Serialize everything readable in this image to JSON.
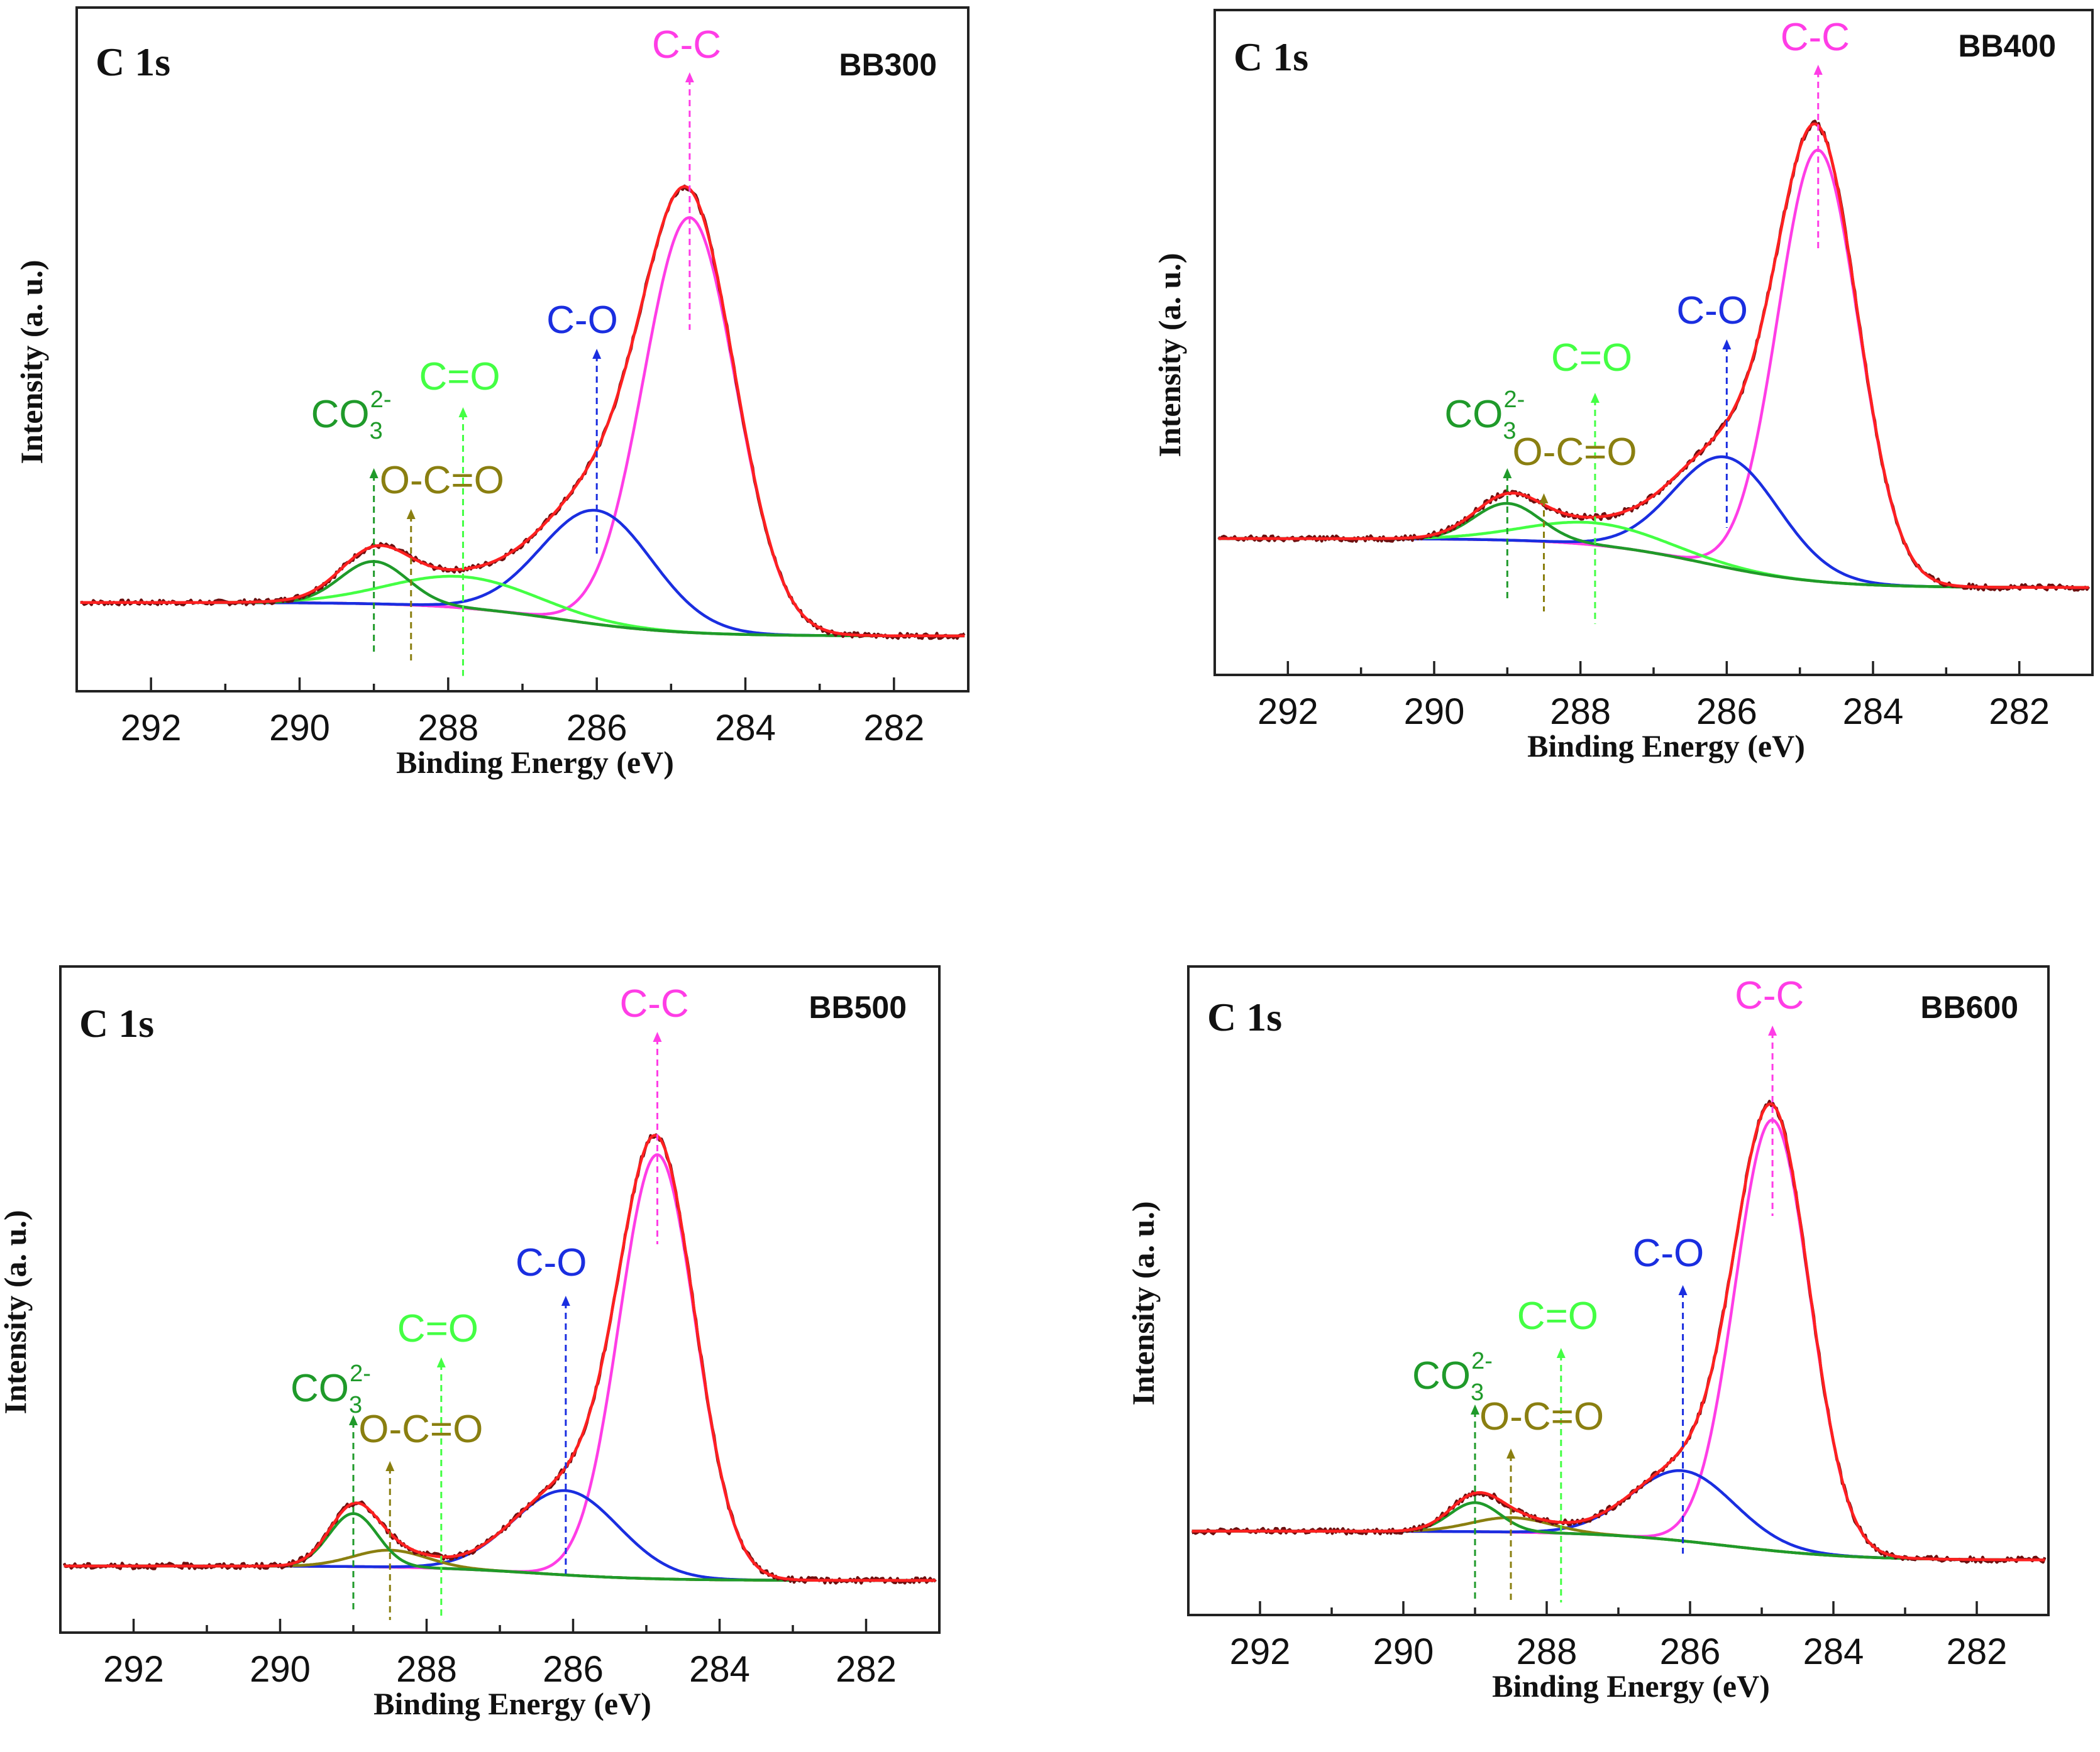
{
  "colors": {
    "raw": "#6b1010",
    "envelope": "#ff2020",
    "CC": "#ff3de6",
    "CO": "#1a2ee0",
    "C=O": "#44ff44",
    "OCO": "#8a7f10",
    "CO3": "#1f9a2a",
    "background": "#e0a018"
  },
  "chart_data": [
    {
      "type": "line",
      "panel": "BB300",
      "corner_label": "C 1s",
      "sample_label": "BB300",
      "xlabel": "Binding Energy (eV)",
      "ylabel": "Intensity (a. u.)",
      "xlim": [
        293,
        281
      ],
      "ylim": [
        0,
        1.12
      ],
      "xticks": [
        292,
        290,
        288,
        286,
        284,
        282
      ],
      "background": {
        "high_be": 0.03,
        "low_be": -0.045,
        "center": 286.5,
        "width": 0.8
      },
      "series": [
        {
          "name": "C-C",
          "key": "CC",
          "center": 284.75,
          "height": 0.93,
          "sigma": 0.62
        },
        {
          "name": "C-O",
          "key": "CO",
          "center": 286.0,
          "height": 0.255,
          "sigma": 0.75
        },
        {
          "name": "C=O",
          "key": "C=O",
          "center": 287.8,
          "height": 0.07,
          "sigma": 1.0
        },
        {
          "name": "CO3 2-",
          "key": "CO3",
          "center": 289.0,
          "height": 0.095,
          "sigma": 0.45
        }
      ],
      "annotations": [
        {
          "label": "C-C",
          "key": "CC",
          "x": 284.75
        },
        {
          "label": "C-O",
          "key": "CO",
          "x": 286.0
        },
        {
          "label": "C=O",
          "key": "C=O",
          "x": 287.8
        },
        {
          "label": "O-C=O",
          "key": "OCO",
          "x": 288.5
        },
        {
          "label": "CO",
          "sub": "3",
          "sup": "2-",
          "key": "CO3",
          "x": 289.0
        }
      ]
    },
    {
      "type": "line",
      "panel": "BB400",
      "corner_label": "C 1s",
      "sample_label": "BB400",
      "xlabel": "Binding Energy (eV)",
      "ylabel": "Intensity (a. u.)",
      "xlim": [
        293,
        281
      ],
      "ylim": [
        0,
        1.1
      ],
      "xticks": [
        292,
        290,
        288,
        286,
        284,
        282
      ],
      "background": {
        "high_be": 0.1,
        "low_be": 0.0,
        "center": 286.3,
        "width": 0.8
      },
      "series": [
        {
          "name": "C-C",
          "key": "CC",
          "center": 284.75,
          "height": 0.88,
          "sigma": 0.55
        },
        {
          "name": "C-O",
          "key": "CO",
          "center": 286.0,
          "height": 0.225,
          "sigma": 0.72
        },
        {
          "name": "C=O",
          "key": "C=O",
          "center": 287.8,
          "height": 0.045,
          "sigma": 0.95
        },
        {
          "name": "CO3 2-",
          "key": "CO3",
          "center": 289.0,
          "height": 0.075,
          "sigma": 0.45
        }
      ],
      "annotations": [
        {
          "label": "C-C",
          "key": "CC",
          "x": 284.75
        },
        {
          "label": "C-O",
          "key": "CO",
          "x": 286.0
        },
        {
          "label": "C=O",
          "key": "C=O",
          "x": 287.8
        },
        {
          "label": "O-C=O",
          "key": "OCO",
          "x": 288.5
        },
        {
          "label": "CO",
          "sub": "3",
          "sup": "2-",
          "key": "CO3",
          "x": 289.0
        }
      ]
    },
    {
      "type": "line",
      "panel": "BB500",
      "corner_label": "C 1s",
      "sample_label": "BB500",
      "xlabel": "Binding Energy (eV)",
      "ylabel": "Intensity (a. u.)",
      "xlim": [
        293,
        281
      ],
      "ylim": [
        0,
        1.12
      ],
      "xticks": [
        292,
        290,
        288,
        286,
        284,
        282
      ],
      "background": {
        "high_be": 0.03,
        "low_be": 0.0,
        "center": 286.5,
        "width": 0.8
      },
      "series": [
        {
          "name": "C-C",
          "key": "CC",
          "center": 284.85,
          "height": 0.88,
          "sigma": 0.52
        },
        {
          "name": "C-O",
          "key": "CO",
          "center": 286.1,
          "height": 0.175,
          "sigma": 0.72
        },
        {
          "name": "O-C=O",
          "key": "OCO",
          "center": 288.5,
          "height": 0.035,
          "sigma": 0.5
        },
        {
          "name": "CO3 2-",
          "key": "CO3",
          "center": 289.0,
          "height": 0.11,
          "sigma": 0.33
        }
      ],
      "annotations": [
        {
          "label": "C-C",
          "key": "CC",
          "x": 284.85
        },
        {
          "label": "C-O",
          "key": "CO",
          "x": 286.1
        },
        {
          "label": "C=O",
          "key": "C=O",
          "x": 287.8
        },
        {
          "label": "O-C=O",
          "key": "OCO",
          "x": 288.5
        },
        {
          "label": "CO",
          "sub": "3",
          "sup": "2-",
          "key": "CO3",
          "x": 289.0
        }
      ]
    },
    {
      "type": "line",
      "panel": "BB600",
      "corner_label": "C 1s",
      "sample_label": "BB600",
      "xlabel": "Binding Energy (eV)",
      "ylabel": "Intensity (a. u.)",
      "xlim": [
        293,
        281
      ],
      "ylim": [
        0,
        1.12
      ],
      "xticks": [
        292,
        290,
        288,
        286,
        284,
        282
      ],
      "background": {
        "high_be": 0.05,
        "low_be": -0.01,
        "center": 285.5,
        "width": 0.9
      },
      "series": [
        {
          "name": "C-C",
          "key": "CC",
          "center": 284.85,
          "height": 0.89,
          "sigma": 0.52
        },
        {
          "name": "C-O",
          "key": "CO",
          "center": 286.1,
          "height": 0.145,
          "sigma": 0.72
        },
        {
          "name": "O-C=O",
          "key": "OCO",
          "center": 288.5,
          "height": 0.03,
          "sigma": 0.55
        },
        {
          "name": "CO3 2-",
          "key": "CO3",
          "center": 289.0,
          "height": 0.06,
          "sigma": 0.35
        }
      ],
      "annotations": [
        {
          "label": "C-C",
          "key": "CC",
          "x": 284.85
        },
        {
          "label": "C-O",
          "key": "CO",
          "x": 286.1
        },
        {
          "label": "C=O",
          "key": "C=O",
          "x": 287.8
        },
        {
          "label": "O-C=O",
          "key": "OCO",
          "x": 288.5
        },
        {
          "label": "CO",
          "sub": "3",
          "sup": "2-",
          "key": "CO3",
          "x": 289.0
        }
      ]
    }
  ]
}
